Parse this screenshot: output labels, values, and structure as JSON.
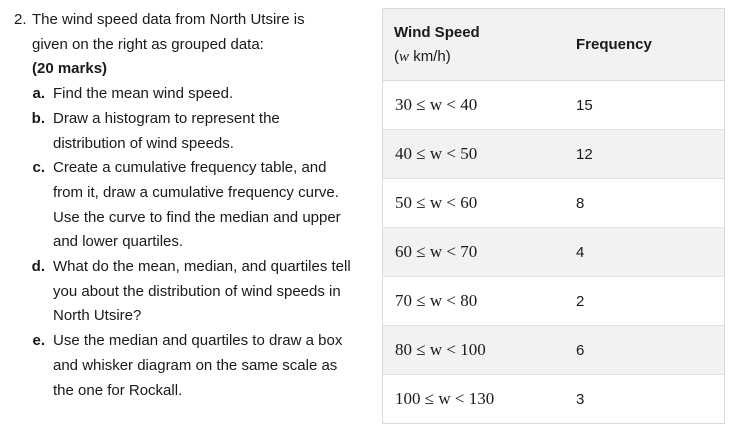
{
  "question": {
    "number": "2.",
    "intro": "The wind speed data from North Utsire is given on the right as grouped data:",
    "marks": "(20 marks)",
    "parts": [
      {
        "label": "a.",
        "text": "Find the mean wind speed."
      },
      {
        "label": "b.",
        "text": "Draw a histogram to represent the distribution of wind speeds."
      },
      {
        "label": "c.",
        "text": "Create a cumulative frequency table, and from it, draw a cumulative frequency curve. Use the curve to find the median and upper and lower quartiles."
      },
      {
        "label": "d.",
        "text": "What do the mean, median, and quartiles tell you about the distribution of wind speeds in North Utsire?"
      },
      {
        "label": "e.",
        "text": "Use the median and quartiles to draw a box and whisker diagram on the same scale as the one for Rockall."
      }
    ]
  },
  "table": {
    "header_wind_speed": "Wind Speed",
    "header_unit_var": "w",
    "header_unit": "km/h",
    "header_frequency": "Frequency",
    "rows": [
      {
        "range": "30 ≤ w < 40",
        "frequency": "15"
      },
      {
        "range": "40 ≤ w < 50",
        "frequency": "12"
      },
      {
        "range": "50 ≤ w < 60",
        "frequency": "8"
      },
      {
        "range": "60 ≤ w < 70",
        "frequency": "4"
      },
      {
        "range": "70 ≤ w < 80",
        "frequency": "2"
      },
      {
        "range": "80 ≤ w < 100",
        "frequency": "6"
      },
      {
        "range": "100 ≤ w < 130",
        "frequency": "3"
      }
    ]
  }
}
